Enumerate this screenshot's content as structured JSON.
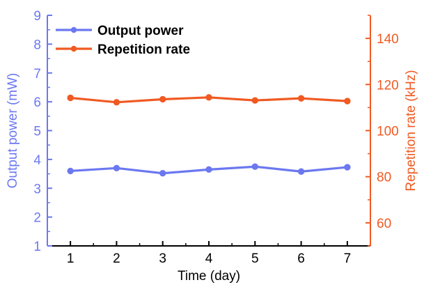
{
  "chart_data": {
    "type": "line",
    "x": [
      1,
      2,
      3,
      4,
      5,
      6,
      7
    ],
    "xlabel": "Time (day)",
    "xlim": [
      0.5,
      7.5
    ],
    "xticks": [
      1,
      2,
      3,
      4,
      5,
      6,
      7
    ],
    "y_left": {
      "label": "Output power (mW)",
      "lim": [
        1,
        9
      ],
      "ticks": [
        1,
        2,
        3,
        4,
        5,
        6,
        7,
        8,
        9
      ],
      "color": "#6b78f0"
    },
    "y_right": {
      "label": "Repetition rate (kHz)",
      "lim": [
        50,
        150
      ],
      "ticks": [
        60,
        80,
        100,
        120,
        140
      ],
      "color": "#f05a22"
    },
    "series": [
      {
        "name": "Output power",
        "axis": "left",
        "color": "#6b78f0",
        "values": [
          3.6,
          3.7,
          3.52,
          3.65,
          3.75,
          3.58,
          3.73
        ]
      },
      {
        "name": "Repetition rate",
        "axis": "right",
        "color": "#f05a22",
        "values": [
          114.2,
          112.3,
          113.6,
          114.4,
          113.1,
          114.0,
          112.8
        ]
      }
    ],
    "legend": {
      "position": "top-left",
      "entries": [
        "Output power",
        "Repetition rate"
      ]
    },
    "grid": false,
    "left_axis_color": "#6b78f0",
    "right_axis_color": "#f05a22",
    "bottom_axis_color": "#000000"
  }
}
